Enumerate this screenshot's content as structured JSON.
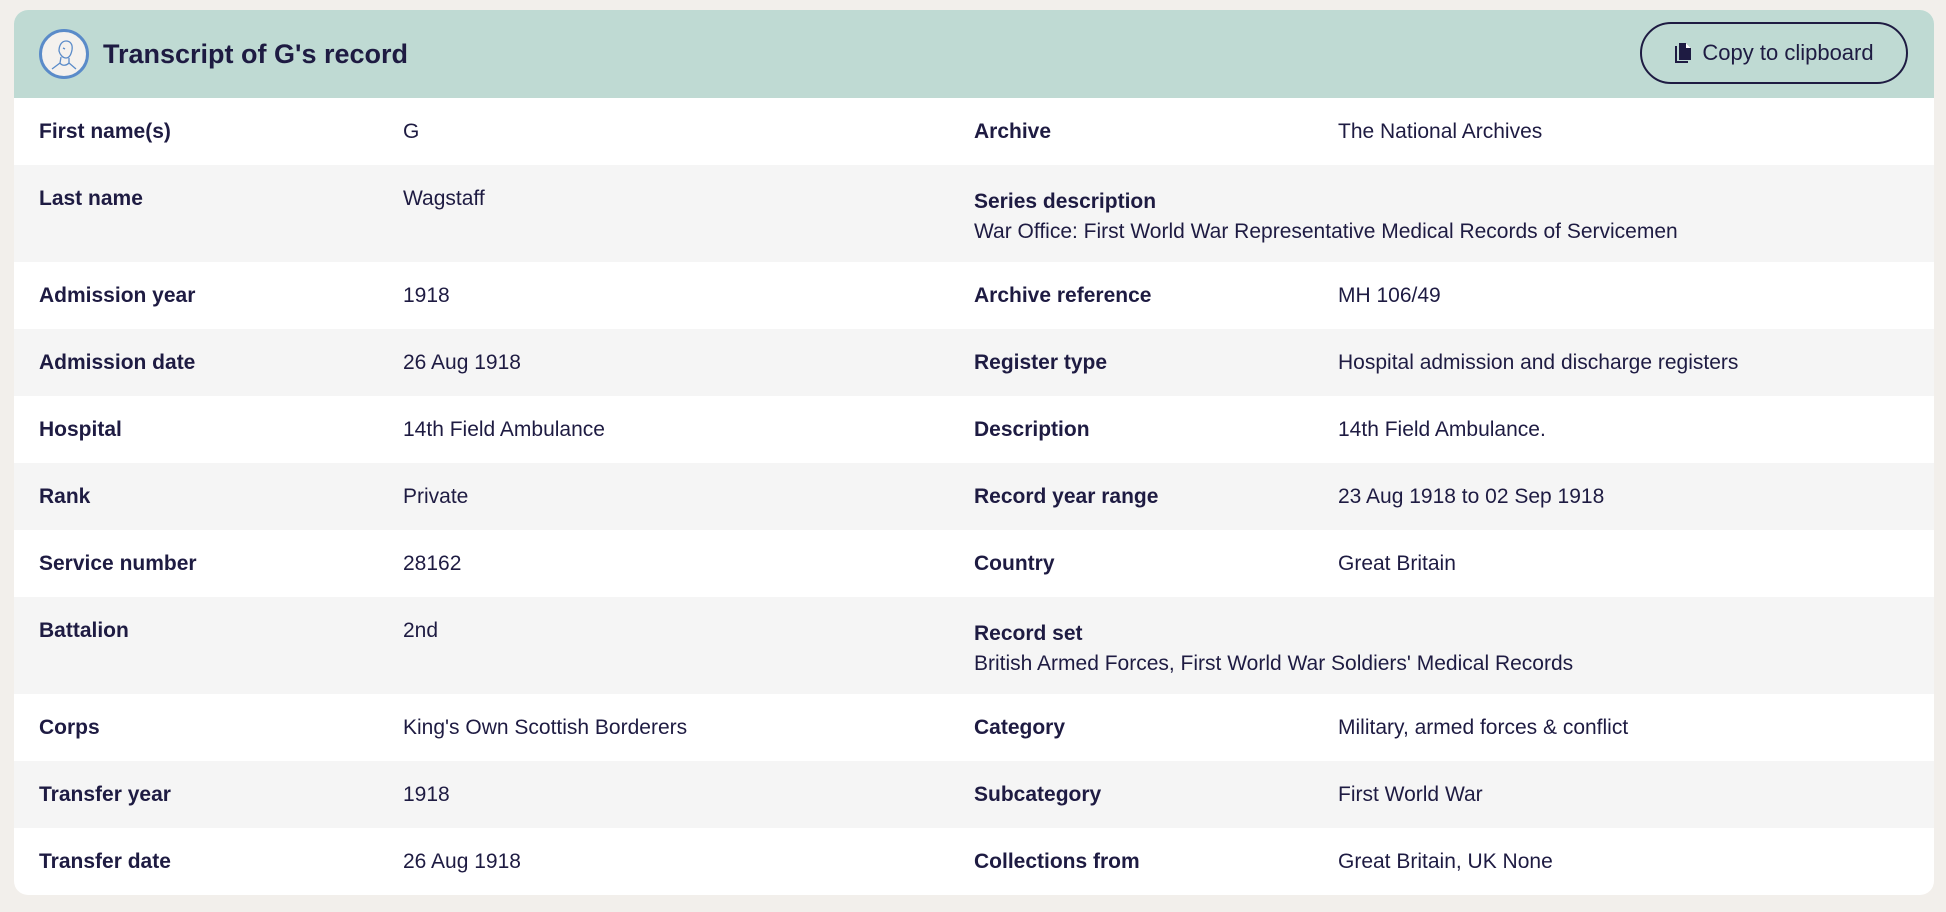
{
  "header": {
    "title": "Transcript of G's record",
    "copy_label": "Copy to clipboard"
  },
  "left": [
    {
      "label": "First name(s)",
      "value": "G"
    },
    {
      "label": "Last name",
      "value": "Wagstaff"
    },
    {
      "label": "Admission year",
      "value": "1918"
    },
    {
      "label": "Admission date",
      "value": "26 Aug 1918"
    },
    {
      "label": "Hospital",
      "value": "14th Field Ambulance"
    },
    {
      "label": "Rank",
      "value": "Private"
    },
    {
      "label": "Service number",
      "value": "28162"
    },
    {
      "label": "Battalion",
      "value": "2nd"
    },
    {
      "label": "Corps",
      "value": "King's Own Scottish Borderers"
    },
    {
      "label": "Transfer year",
      "value": "1918"
    },
    {
      "label": "Transfer date",
      "value": "26 Aug 1918"
    }
  ],
  "right": [
    {
      "label": "Archive",
      "value": "The National Archives"
    },
    {
      "label": "Series description",
      "value": "War Office: First World War Representative Medical Records of Servicemen"
    },
    {
      "label": "Archive reference",
      "value": "MH 106/49"
    },
    {
      "label": "Register type",
      "value": "Hospital admission and discharge registers"
    },
    {
      "label": "Description",
      "value": "14th Field Ambulance."
    },
    {
      "label": "Record year range",
      "value": "23 Aug 1918 to 02 Sep 1918"
    },
    {
      "label": "Country",
      "value": "Great Britain"
    },
    {
      "label": "Record set",
      "value": "British Armed Forces, First World War Soldiers' Medical Records"
    },
    {
      "label": "Category",
      "value": "Military, armed forces & conflict"
    },
    {
      "label": "Subcategory",
      "value": "First World War"
    },
    {
      "label": "Collections from",
      "value": "Great Britain, UK None"
    }
  ]
}
